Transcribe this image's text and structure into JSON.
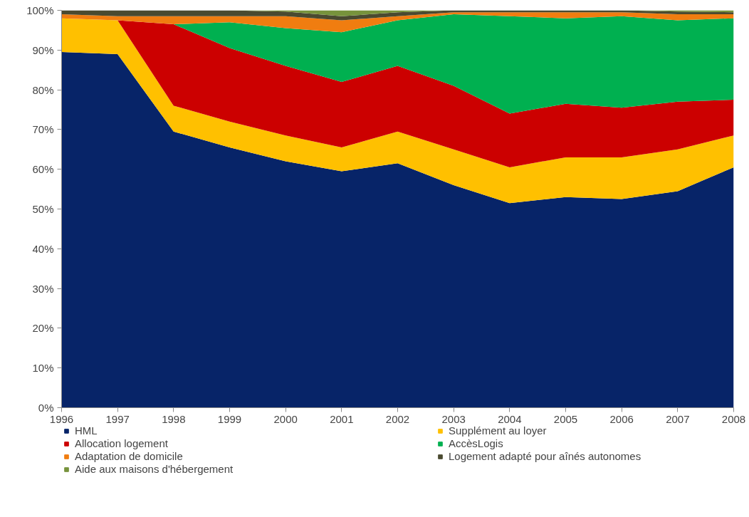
{
  "chart_data": {
    "type": "area",
    "stacked": true,
    "x": [
      1996,
      1997,
      1998,
      1999,
      2000,
      2001,
      2002,
      2003,
      2004,
      2005,
      2006,
      2007,
      2008
    ],
    "xlim": [
      1996,
      2008
    ],
    "xticks": [
      1996,
      1997,
      1998,
      1999,
      2000,
      2001,
      2002,
      2003,
      2004,
      2005,
      2006,
      2007,
      2008
    ],
    "ylim": [
      0,
      100
    ],
    "yticks": [
      {
        "value": 0,
        "label": "0%"
      },
      {
        "value": 10,
        "label": "10%"
      },
      {
        "value": 20,
        "label": "20%"
      },
      {
        "value": 30,
        "label": "30%"
      },
      {
        "value": 40,
        "label": "40%"
      },
      {
        "value": 50,
        "label": "50%"
      },
      {
        "value": 60,
        "label": "60%"
      },
      {
        "value": 70,
        "label": "70%"
      },
      {
        "value": 80,
        "label": "80%"
      },
      {
        "value": 90,
        "label": "90%"
      },
      {
        "value": 100,
        "label": "100%"
      }
    ],
    "grid": false,
    "legend": "bottom",
    "series": [
      {
        "name": "HML",
        "color": "#072468",
        "values": [
          89.5,
          89,
          69.5,
          65.5,
          62,
          59.5,
          61.5,
          56,
          51.5,
          53,
          52.5,
          54.5,
          60.5
        ]
      },
      {
        "name": "Supplément au loyer",
        "color": "#ffc000",
        "values": [
          8.5,
          8.5,
          6.5,
          6.5,
          6.5,
          6,
          8,
          9,
          9,
          10,
          10.5,
          10.5,
          8
        ]
      },
      {
        "name": "Allocation logement",
        "color": "#cc0000",
        "values": [
          0,
          0,
          20.5,
          18.5,
          17.5,
          16.5,
          16.5,
          16,
          13.5,
          13.5,
          12.5,
          12,
          9
        ]
      },
      {
        "name": "AccèsLogis",
        "color": "#00b050",
        "values": [
          0,
          0,
          0,
          6.5,
          9.5,
          12.5,
          11.5,
          18,
          24.5,
          21.5,
          23,
          20.5,
          20.5
        ]
      },
      {
        "name": "Adaptation de domicile",
        "color": "#f07d10",
        "values": [
          1,
          1,
          2,
          1.5,
          3,
          3,
          1,
          0.5,
          1,
          1.5,
          1,
          1.5,
          1
        ]
      },
      {
        "name": "Logement adapté pour aînés autonomes",
        "color": "#4a4a30",
        "values": [
          1,
          1.5,
          1.5,
          1.5,
          1.2,
          1,
          1,
          0.5,
          0.5,
          0.5,
          0.5,
          0.7,
          0.5
        ]
      },
      {
        "name": "Aide aux maisons d'hébergement",
        "color": "#77933c",
        "values": [
          0,
          0,
          0,
          0,
          0.3,
          1.5,
          0.5,
          0,
          0,
          0,
          0,
          0.3,
          0.5
        ]
      }
    ]
  }
}
